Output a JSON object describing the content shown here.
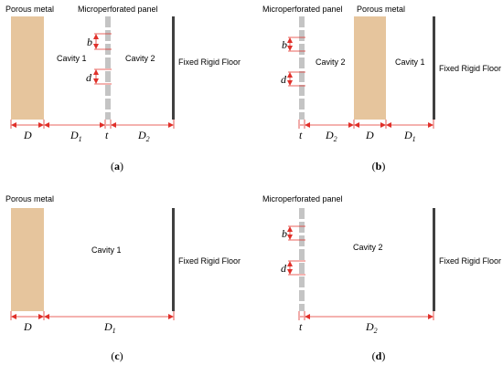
{
  "colors": {
    "porous": "#e6c59d",
    "panel": "#c4c4c4",
    "floor": "#404040",
    "dimension": "#e0302a",
    "text": "#000000"
  },
  "labels": {
    "porous_metal": "Porous metal",
    "microperforated_panel": "Microperforated panel",
    "cavity_1": "Cavity 1",
    "cavity_2": "Cavity 2",
    "fixed_rigid_floor": "Fixed Rigid Floor"
  },
  "symbols": {
    "D": "D",
    "D1_base": "D",
    "D1_sub": "1",
    "D2_base": "D",
    "D2_sub": "2",
    "t": "t",
    "b": "b",
    "d": "d"
  },
  "panels": {
    "a": {
      "caption_letter": "a"
    },
    "b": {
      "caption_letter": "b"
    },
    "c": {
      "caption_letter": "c"
    },
    "d": {
      "caption_letter": "d"
    }
  }
}
